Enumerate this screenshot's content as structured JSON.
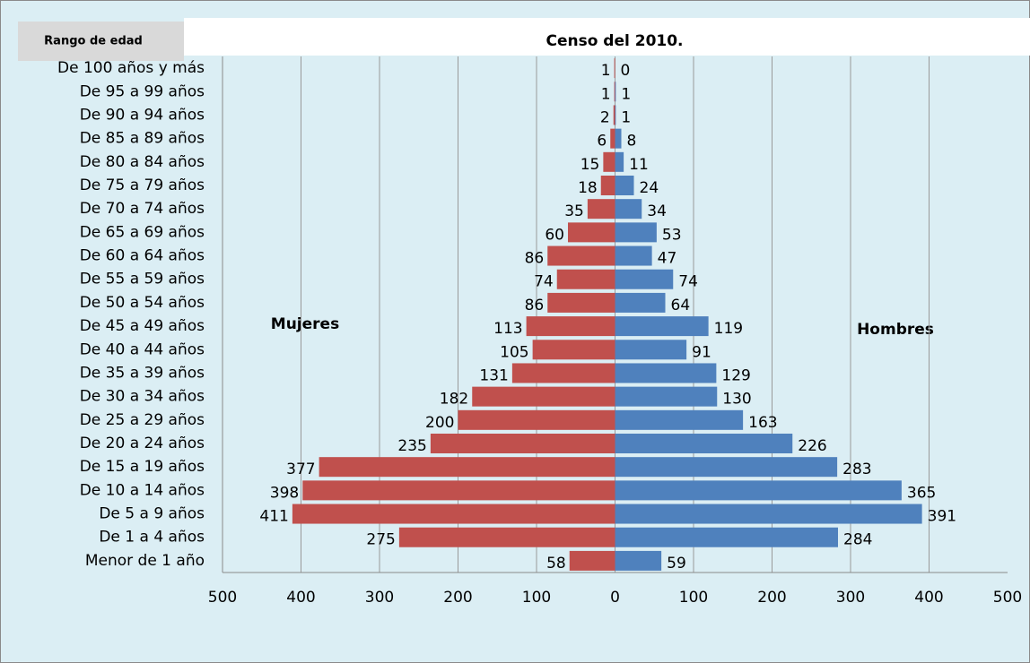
{
  "chart_data": {
    "type": "pyramid",
    "title": "Censo del 2010.",
    "axis_label": "Rango de edad",
    "categories": [
      "De 100 años y más",
      "De 95 a 99 años",
      "De 90 a 94 años",
      "De 85 a 89 años",
      "De 80 a 84 años",
      "De 75 a 79 años",
      "De 70 a 74 años",
      "De 65 a 69 años",
      "De 60 a 64 años",
      "De 55 a 59 años",
      "De 50 a 54 años",
      "De 45 a 49 años",
      "De 40 a 44 años",
      "De 35 a 39 años",
      "De 30 a 34 años",
      "De 25 a 29 años",
      "De 20 a 24 años",
      "De 15 a 19 años",
      "De 10 a 14 años",
      "De 5 a 9 años",
      "De 1 a 4 años",
      "Menor de 1 año"
    ],
    "series": [
      {
        "name": "Mujeres",
        "color": "#c0504d",
        "side": "left",
        "values": [
          1,
          1,
          2,
          6,
          15,
          18,
          35,
          60,
          86,
          74,
          86,
          113,
          105,
          131,
          182,
          200,
          235,
          377,
          398,
          411,
          275,
          58
        ]
      },
      {
        "name": "Hombres",
        "color": "#4f81bd",
        "side": "right",
        "values": [
          0,
          1,
          1,
          8,
          11,
          24,
          34,
          53,
          47,
          74,
          64,
          119,
          91,
          129,
          130,
          163,
          226,
          283,
          365,
          391,
          284,
          59
        ]
      }
    ],
    "xlim": [
      -500,
      500
    ],
    "xticks": [
      {
        "value": -500,
        "label": "500"
      },
      {
        "value": -400,
        "label": "400"
      },
      {
        "value": -300,
        "label": "300"
      },
      {
        "value": -200,
        "label": "200"
      },
      {
        "value": -100,
        "label": "100"
      },
      0,
      100,
      200,
      300,
      400,
      500
    ],
    "grid": true
  }
}
